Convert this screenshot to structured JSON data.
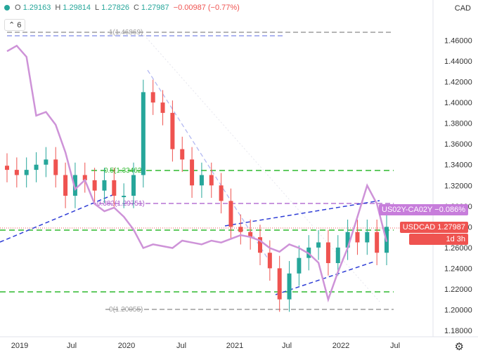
{
  "header": {
    "o_label": "O",
    "o": "1.29163",
    "h_label": "H",
    "h": "1.29814",
    "l_label": "L",
    "l": "1.27826",
    "c_label": "C",
    "c": "1.27987",
    "change": "−0.00987 (−0.77%)",
    "indicators_count": "6"
  },
  "axis": {
    "currency": "CAD"
  },
  "settings_icon": "gear-icon",
  "tags": {
    "spread_label": "US02Y-CA02Y",
    "spread_value": "−0.086%",
    "price_label": "USDCAD",
    "price_value": "1.27987",
    "countdown": "1d 3h"
  },
  "fib_labels": {
    "level_1": "1(1.46869)",
    "level_05": "0.5(1.33462)",
    "level_0382": "0.382(1.29751)",
    "level_0": "0(1.20055)"
  },
  "colors": {
    "up": "#26a69a",
    "down": "#ef5350",
    "spread": "#ce93d8",
    "trend": "#2f3ed6",
    "fib_green": "#2db82d",
    "fib_gray": "#9e9e9e"
  },
  "chart_data": {
    "type": "line",
    "symbol": "USDCAD",
    "ylim": [
      1.17,
      1.49
    ],
    "yticks": [
      "1.46000",
      "1.44000",
      "1.42000",
      "1.40000",
      "1.38000",
      "1.36000",
      "1.34000",
      "1.32000",
      "1.30000",
      "1.28000",
      "1.26000",
      "1.24000",
      "1.22000",
      "1.20000",
      "1.18000"
    ],
    "xticks": [
      "2019",
      "Jul",
      "2020",
      "Jul",
      "2021",
      "Jul",
      "2022",
      "Jul"
    ],
    "x": [
      "2019-01",
      "2019-02",
      "2019-03",
      "2019-04",
      "2019-05",
      "2019-06",
      "2019-07",
      "2019-08",
      "2019-09",
      "2019-10",
      "2019-11",
      "2019-12",
      "2020-01",
      "2020-02",
      "2020-03",
      "2020-04",
      "2020-05",
      "2020-06",
      "2020-07",
      "2020-08",
      "2020-09",
      "2020-10",
      "2020-11",
      "2020-12",
      "2021-01",
      "2021-02",
      "2021-03",
      "2021-04",
      "2021-05",
      "2021-06",
      "2021-07",
      "2021-08",
      "2021-09",
      "2021-10",
      "2021-11",
      "2021-12",
      "2022-01",
      "2022-02",
      "2022-03",
      "2022-04"
    ],
    "series": [
      {
        "name": "USDCAD",
        "values": [
          1.335,
          1.33,
          1.335,
          1.34,
          1.345,
          1.33,
          1.31,
          1.33,
          1.325,
          1.315,
          1.325,
          1.31,
          1.31,
          1.33,
          1.41,
          1.4,
          1.39,
          1.355,
          1.345,
          1.32,
          1.33,
          1.32,
          1.305,
          1.28,
          1.275,
          1.27,
          1.255,
          1.24,
          1.21,
          1.235,
          1.25,
          1.26,
          1.265,
          1.245,
          1.26,
          1.275,
          1.265,
          1.275,
          1.255,
          1.28
        ]
      },
      {
        "name": "US02Y-CA02Y",
        "values": [
          0.95,
          0.98,
          0.92,
          0.6,
          0.62,
          0.55,
          0.4,
          0.2,
          0.25,
          0.12,
          0.08,
          0.1,
          0.05,
          -0.02,
          -0.12,
          -0.1,
          -0.11,
          -0.12,
          -0.08,
          -0.09,
          -0.1,
          -0.08,
          -0.09,
          -0.07,
          -0.05,
          -0.06,
          -0.08,
          -0.12,
          -0.14,
          -0.1,
          -0.12,
          -0.15,
          -0.2,
          -0.4,
          -0.25,
          -0.12,
          0.05,
          0.22,
          0.12,
          -0.086
        ]
      }
    ],
    "horizontal_levels": [
      1.46869,
      1.33462,
      1.29751,
      1.27987,
      1.2175,
      1.20055
    ],
    "grid": false,
    "legend": "right-axis-tags"
  }
}
